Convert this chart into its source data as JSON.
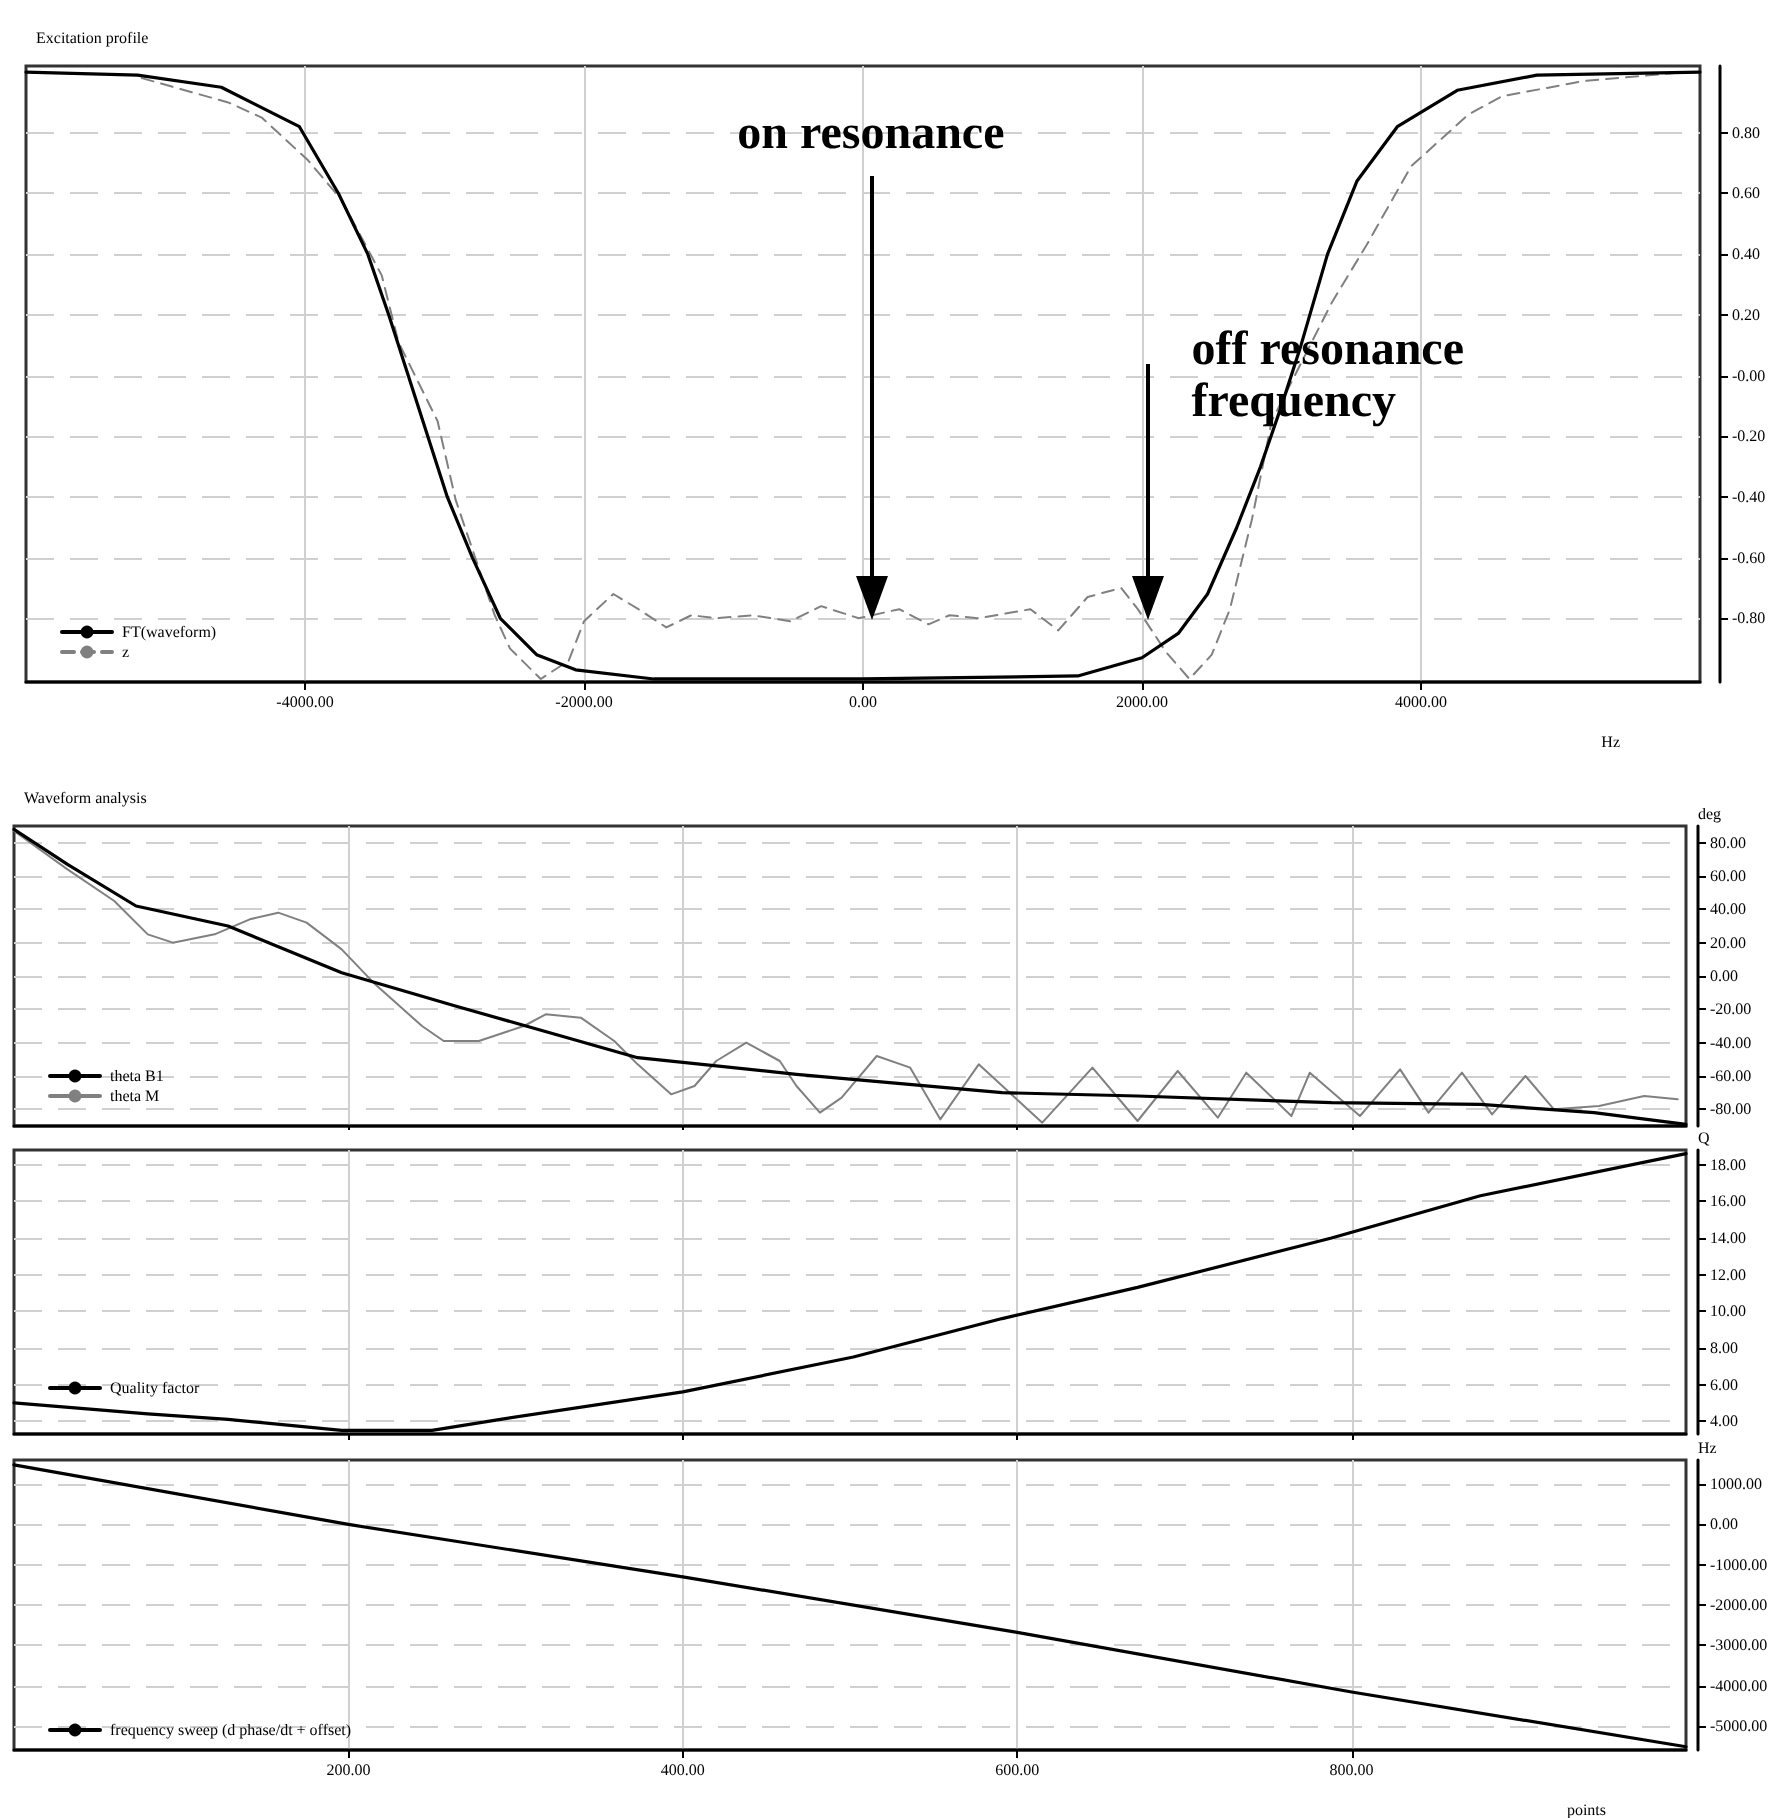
{
  "chart_data": [
    {
      "type": "line",
      "title": "Excitation profile",
      "xlabel": "Hz",
      "xlim": [
        -6000,
        6000
      ],
      "xticks": [
        {
          "value": -4000,
          "label": "-4000.00"
        },
        {
          "value": -2000,
          "label": "-2000.00"
        },
        {
          "value": 0,
          "label": "0.00"
        },
        {
          "value": 2000,
          "label": "2000.00"
        },
        {
          "value": 4000,
          "label": "4000.00"
        }
      ],
      "ylim": [
        -1.01,
        1.02
      ],
      "yticks": [
        {
          "value": -0.8,
          "label": "-0.80"
        },
        {
          "value": -0.6,
          "label": "-0.60"
        },
        {
          "value": -0.4,
          "label": "-0.40"
        },
        {
          "value": -0.2,
          "label": "-0.20"
        },
        {
          "value": 0,
          "label": "-0.00"
        },
        {
          "value": 0.2,
          "label": "0.20"
        },
        {
          "value": 0.4,
          "label": "0.40"
        },
        {
          "value": 0.6,
          "label": "0.60"
        },
        {
          "value": 0.8,
          "label": "0.80"
        }
      ],
      "grid": true,
      "legend": "bottom left",
      "marker": "none",
      "series": [
        {
          "name": "FT(waveform)",
          "color": "#000000",
          "x": [
            -6000,
            -5200,
            -4600,
            -4040,
            -3760,
            -3550,
            -3400,
            -3260,
            -3120,
            -2980,
            -2800,
            -2600,
            -2340,
            -2060,
            -1500,
            0,
            1540,
            2000,
            2260,
            2470,
            2680,
            2850,
            3000,
            3140,
            3330,
            3540,
            3830,
            4260,
            4830,
            6000
          ],
          "values": [
            1.0,
            0.99,
            0.95,
            0.82,
            0.6,
            0.4,
            0.2,
            0.0,
            -0.2,
            -0.4,
            -0.6,
            -0.8,
            -0.92,
            -0.97,
            -1.0,
            -1.0,
            -0.99,
            -0.93,
            -0.85,
            -0.72,
            -0.5,
            -0.3,
            -0.1,
            0.1,
            0.4,
            0.64,
            0.82,
            0.94,
            0.99,
            1.0
          ]
        },
        {
          "name": "z",
          "color": "#808080",
          "line_style": "dashed",
          "x": [
            -5170,
            -4550,
            -4310,
            -3980,
            -3740,
            -3450,
            -3330,
            -3050,
            -2920,
            -2640,
            -2530,
            -2310,
            -2110,
            -2000,
            -1790,
            -1610,
            -1410,
            -1230,
            -1050,
            -790,
            -520,
            -300,
            -30,
            260,
            470,
            620,
            830,
            1200,
            1400,
            1610,
            1850,
            1970,
            2170,
            2340,
            2500,
            2630,
            2790,
            2930,
            3360,
            3610,
            3930,
            4340,
            4580,
            5160,
            5890
          ],
          "values": [
            0.98,
            0.9,
            0.85,
            0.71,
            0.58,
            0.33,
            0.11,
            -0.15,
            -0.41,
            -0.79,
            -0.9,
            -1.0,
            -0.94,
            -0.81,
            -0.72,
            -0.77,
            -0.83,
            -0.79,
            -0.8,
            -0.79,
            -0.81,
            -0.76,
            -0.8,
            -0.77,
            -0.82,
            -0.79,
            -0.8,
            -0.77,
            -0.84,
            -0.73,
            -0.7,
            -0.77,
            -0.91,
            -1.0,
            -0.92,
            -0.77,
            -0.47,
            -0.15,
            0.24,
            0.43,
            0.69,
            0.86,
            0.92,
            0.97,
            1.0
          ]
        }
      ],
      "annotations": [
        "on resonance",
        "off resonance frequency"
      ]
    },
    {
      "type": "line",
      "title": "Waveform analysis",
      "ylabel": "deg",
      "xlim": [
        0,
        1000
      ],
      "ylim": [
        -90,
        90
      ],
      "yticks": [
        {
          "value": -80,
          "label": "-80.00"
        },
        {
          "value": -60,
          "label": "-60.00"
        },
        {
          "value": -40,
          "label": "-40.00"
        },
        {
          "value": -20,
          "label": "-20.00"
        },
        {
          "value": 0,
          "label": "0.00"
        },
        {
          "value": 20,
          "label": "20.00"
        },
        {
          "value": 40,
          "label": "40.00"
        },
        {
          "value": 60,
          "label": "60.00"
        },
        {
          "value": 80,
          "label": "80.00"
        }
      ],
      "xticks": [
        200,
        400,
        600,
        800
      ],
      "tick_labels": "y",
      "grid": true,
      "legend": "bottom left",
      "marker": "none",
      "series": [
        {
          "name": "theta B1",
          "color": "#000000",
          "x": [
            0,
            32,
            73,
            128,
            196,
            264,
            373,
            468,
            591,
            672,
            788,
            877,
            945,
            1000
          ],
          "values": [
            88,
            67,
            42,
            30,
            2,
            -18,
            -49,
            -59,
            -70,
            -72,
            -76,
            -77,
            -82,
            -89
          ]
        },
        {
          "name": "theta M",
          "color": "#808080",
          "x": [
            0,
            32,
            60,
            80,
            95,
            120,
            141,
            158,
            175,
            196,
            216,
            244,
            257,
            278,
            305,
            318,
            339,
            359,
            373,
            393,
            407,
            420,
            438,
            458,
            468,
            482,
            495,
            516,
            536,
            554,
            577,
            615,
            645,
            672,
            696,
            720,
            737,
            764,
            775,
            805,
            829,
            846,
            866,
            884,
            904,
            921,
            948,
            975,
            995
          ],
          "values": [
            87,
            64,
            45,
            25,
            20,
            25,
            34,
            38,
            32,
            16,
            -5,
            -30,
            -39,
            -39,
            -30,
            -23,
            -25,
            -39,
            -53,
            -71,
            -66,
            -51,
            -40,
            -51,
            -66,
            -82,
            -73,
            -48,
            -55,
            -86,
            -53,
            -88,
            -55,
            -87,
            -57,
            -85,
            -58,
            -84,
            -58,
            -84,
            -56,
            -82,
            -58,
            -83,
            -60,
            -80,
            -78,
            -72,
            -74
          ]
        }
      ]
    },
    {
      "type": "line",
      "ylabel": "Q",
      "xlim": [
        0,
        1000
      ],
      "ylim": [
        3.3,
        18.8
      ],
      "yticks": [
        {
          "value": 4,
          "label": "4.00"
        },
        {
          "value": 6,
          "label": "6.00"
        },
        {
          "value": 8,
          "label": "8.00"
        },
        {
          "value": 10,
          "label": "10.00"
        },
        {
          "value": 12,
          "label": "12.00"
        },
        {
          "value": 14,
          "label": "14.00"
        },
        {
          "value": 16,
          "label": "16.00"
        },
        {
          "value": 18,
          "label": "18.00"
        }
      ],
      "xticks": [
        200,
        400,
        600,
        800
      ],
      "tick_labels": "y",
      "grid": true,
      "legend": "bottom left",
      "marker": "none",
      "series": [
        {
          "name": "Quality factor",
          "color": "#000000",
          "x": [
            0,
            80,
            128,
            196,
            250,
            291,
            400,
            502,
            591,
            672,
            788,
            877,
            1000
          ],
          "values": [
            5.0,
            4.4,
            4.1,
            3.5,
            3.5,
            4.1,
            5.6,
            7.5,
            9.6,
            11.3,
            14.0,
            16.3,
            18.6
          ]
        }
      ]
    },
    {
      "type": "line",
      "ylabel": "Hz",
      "xlabel": "points",
      "xlim": [
        0,
        1000
      ],
      "xticks": [
        {
          "value": 200,
          "label": "200.00"
        },
        {
          "value": 400,
          "label": "400.00"
        },
        {
          "value": 600,
          "label": "600.00"
        },
        {
          "value": 800,
          "label": "800.00"
        }
      ],
      "ylim": [
        -5600,
        1600
      ],
      "yticks": [
        {
          "value": -5000,
          "label": "-5000.00"
        },
        {
          "value": -4000,
          "label": "-4000.00"
        },
        {
          "value": -3000,
          "label": "-3000.00"
        },
        {
          "value": -2000,
          "label": "-2000.00"
        },
        {
          "value": -1000,
          "label": "-1000.00"
        },
        {
          "value": 0,
          "label": "0.00"
        },
        {
          "value": 1000,
          "label": "1000.00"
        }
      ],
      "grid": true,
      "legend": "bottom left",
      "marker": "none",
      "series": [
        {
          "name": "frequency sweep (d phase/dt + offset)",
          "color": "#000000",
          "x": [
            0,
            200,
            400,
            600,
            800,
            1000
          ],
          "values": [
            1480,
            0,
            -1300,
            -2680,
            -4160,
            -5520
          ]
        }
      ]
    }
  ]
}
